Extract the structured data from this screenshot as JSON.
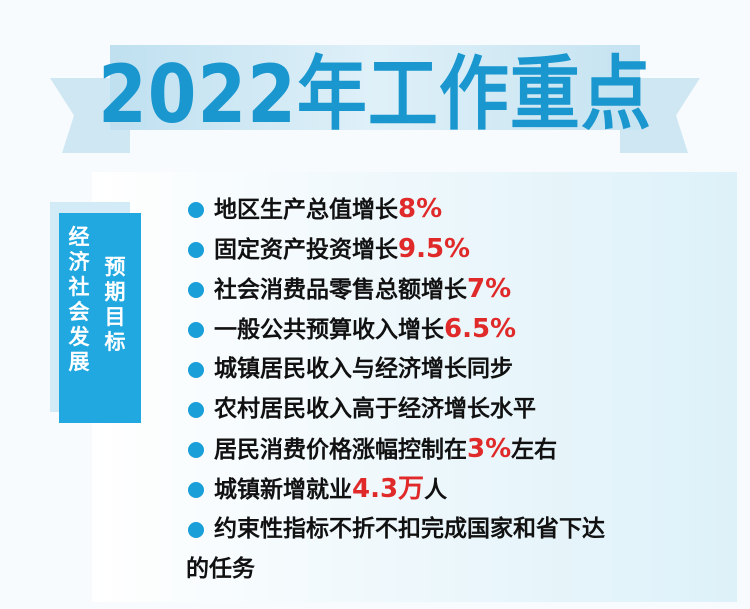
{
  "title": "2022年工作重点",
  "label": {
    "col1": "经济社会发展",
    "col2": "预期目标"
  },
  "colors": {
    "accent": "#22a8e0",
    "title": "#1a97cf",
    "highlight": "#e02a2a"
  },
  "items": [
    {
      "text": "地区生产总值增长",
      "value": "8%",
      "suffix": ""
    },
    {
      "text": "固定资产投资增长",
      "value": "9.5%",
      "suffix": ""
    },
    {
      "text": "社会消费品零售总额增长",
      "value": "7%",
      "suffix": ""
    },
    {
      "text": "一般公共预算收入增长",
      "value": "6.5%",
      "suffix": ""
    },
    {
      "text": "城镇居民收入与经济增长同步",
      "value": "",
      "suffix": ""
    },
    {
      "text": "农村居民收入高于经济增长水平",
      "value": "",
      "suffix": ""
    },
    {
      "text": "居民消费价格涨幅控制在",
      "value": "3%",
      "suffix": "左右"
    },
    {
      "text": "城镇新增就业",
      "value": "4.3万",
      "suffix": "人"
    },
    {
      "text": "约束性指标不折不扣完成国家和省下达",
      "value": "",
      "suffix": ""
    }
  ],
  "last_line": "的任务"
}
